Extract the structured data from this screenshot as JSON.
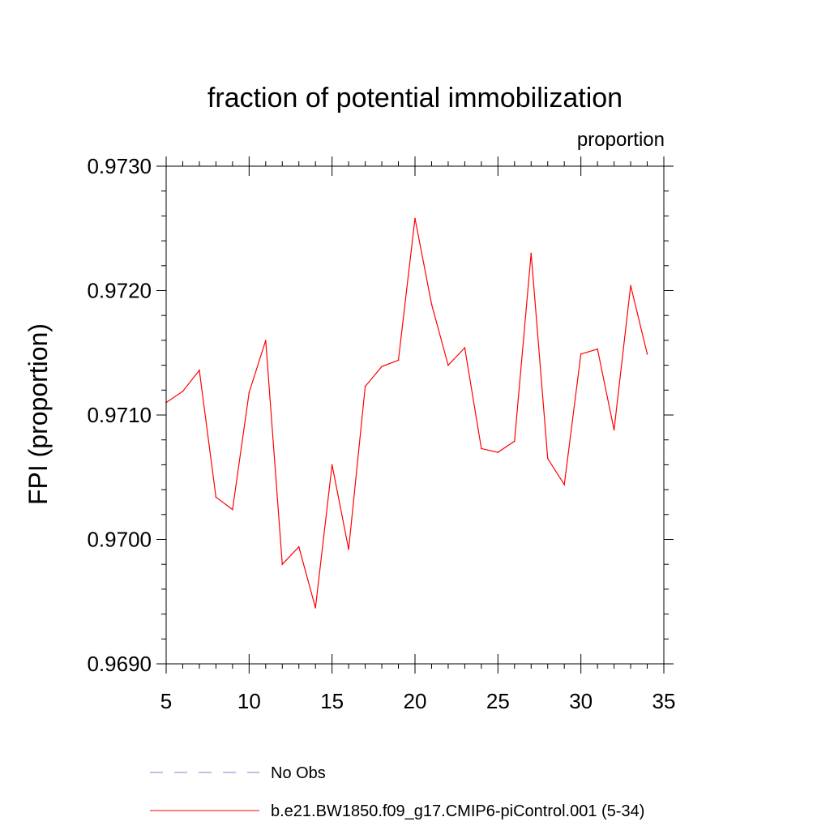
{
  "chart_data": {
    "type": "line",
    "title": "fraction of potential immobilization",
    "subtitle_right": "proportion",
    "xlabel": "",
    "ylabel": "FPI  (proportion)",
    "xlim": [
      5,
      35
    ],
    "ylim": [
      0.969,
      0.973
    ],
    "x_ticks": [
      5,
      10,
      15,
      20,
      25,
      30,
      35
    ],
    "x_tick_labels": [
      "5",
      "10",
      "15",
      "20",
      "25",
      "30",
      "35"
    ],
    "y_ticks": [
      0.969,
      0.97,
      0.971,
      0.972,
      0.973
    ],
    "y_tick_labels": [
      "0.9690",
      "0.9700",
      "0.9710",
      "0.9720",
      "0.9730"
    ],
    "series": [
      {
        "name": "b.e21.BW1850.f09_g17.CMIP6-piControl.001 (5-34)",
        "color": "#ff0000",
        "style": "solid",
        "x": [
          5,
          6,
          7,
          8,
          9,
          10,
          11,
          12,
          13,
          14,
          15,
          16,
          17,
          18,
          19,
          20,
          21,
          22,
          23,
          24,
          25,
          26,
          27,
          28,
          29,
          30,
          31,
          32,
          33,
          34
        ],
        "y": [
          0.9711,
          0.97119,
          0.97136,
          0.97034,
          0.97024,
          0.97118,
          0.9716,
          0.9698,
          0.96994,
          0.96945,
          0.9706,
          0.96992,
          0.97123,
          0.97139,
          0.97144,
          0.97258,
          0.97189,
          0.9714,
          0.97154,
          0.97073,
          0.9707,
          0.97079,
          0.9723,
          0.97065,
          0.97044,
          0.97149,
          0.97153,
          0.97088,
          0.97204,
          0.97149
        ]
      }
    ],
    "legend": [
      {
        "label": "No Obs",
        "color": "#7f7fd8",
        "style": "dashed"
      },
      {
        "label": "b.e21.BW1850.f09_g17.CMIP6-piControl.001 (5-34)",
        "color": "#ff0000",
        "style": "solid"
      }
    ]
  }
}
